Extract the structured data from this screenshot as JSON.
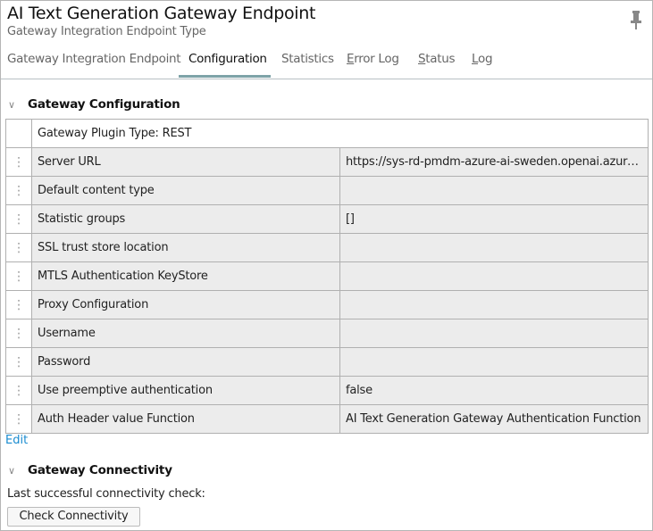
{
  "header": {
    "title": "AI Text Generation Gateway Endpoint",
    "subtitle": "Gateway Integration Endpoint Type",
    "pin_icon": "pin-icon"
  },
  "tabs": [
    {
      "label": "Gateway Integration Endpoint",
      "active": false
    },
    {
      "label": "Configuration",
      "active": true
    },
    {
      "label": "Statistics",
      "active": false
    },
    {
      "label": "Error Log",
      "active": false,
      "mnemonic": "E"
    },
    {
      "label": "Status",
      "active": false,
      "mnemonic": "S"
    },
    {
      "label": "Log",
      "active": false,
      "mnemonic": "L"
    }
  ],
  "config": {
    "title": "Gateway Configuration",
    "plugin_type": "Gateway Plugin Type: REST",
    "rows": [
      {
        "key": "Server URL",
        "value": "https://sys-rd-pmdm-azure-ai-sweden.openai.azure.c..."
      },
      {
        "key": "Default content type",
        "value": ""
      },
      {
        "key": "Statistic groups",
        "value": "[]"
      },
      {
        "key": "SSL trust store location",
        "value": ""
      },
      {
        "key": "MTLS Authentication KeyStore",
        "value": ""
      },
      {
        "key": "Proxy Configuration",
        "value": ""
      },
      {
        "key": "Username",
        "value": ""
      },
      {
        "key": "Password",
        "value": ""
      },
      {
        "key": "Use preemptive authentication",
        "value": "false"
      },
      {
        "key": "Auth Header value Function",
        "value": "AI Text Generation Gateway Authentication Function"
      }
    ],
    "edit_label": "Edit"
  },
  "connectivity": {
    "title": "Gateway Connectivity",
    "last_check_label": "Last successful connectivity check:",
    "button": "Check Connectivity"
  },
  "colors": {
    "accent": "#7ea3a8",
    "link": "#1a8cd0"
  }
}
